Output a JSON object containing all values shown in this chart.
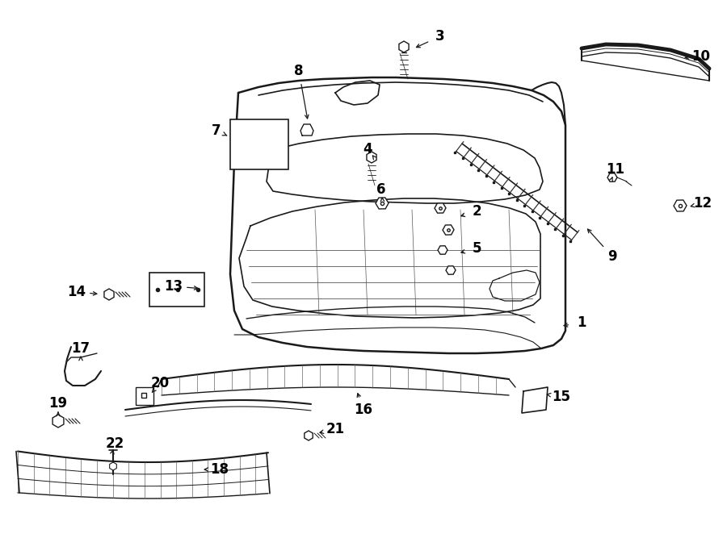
{
  "bg_color": "#ffffff",
  "line_color": "#1a1a1a",
  "label_color": "#000000",
  "fig_width": 9.0,
  "fig_height": 6.62,
  "dpi": 100
}
